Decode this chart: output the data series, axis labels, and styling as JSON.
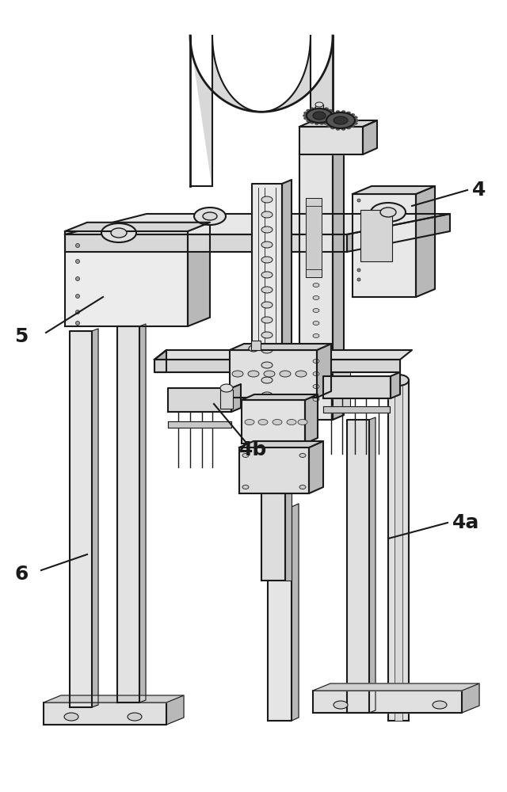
{
  "bg_color": "#ffffff",
  "line_color": "#1a1a1a",
  "lc2": "#333333",
  "fill_light": "#eeeeee",
  "fill_mid": "#d8d8d8",
  "fill_dark": "#b8b8b8",
  "fill_vdark": "#909090",
  "label_4": "4",
  "label_4a": "4a",
  "label_4b": "4b",
  "label_5": "5",
  "label_6": "6",
  "label_fontsize": 18,
  "figsize": [
    6.4,
    10.0
  ],
  "dpi": 100
}
